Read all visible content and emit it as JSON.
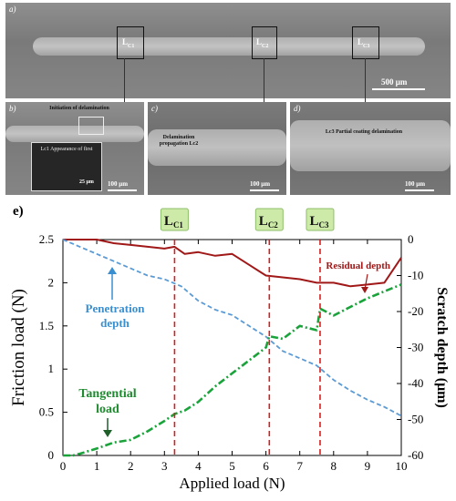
{
  "micrographs": {
    "a": {
      "label": "a)",
      "scale": "500 μm",
      "boxes": [
        "L",
        "L",
        "L"
      ],
      "box_subs": [
        "C1",
        "C2",
        "C3"
      ]
    },
    "b": {
      "label": "b)",
      "scale": "100 μm",
      "annotation": "Initiation of delamination",
      "inset_text": "Lc1 Appearance of first",
      "inset_scale": "25 μm"
    },
    "c": {
      "label": "c)",
      "scale": "100 μm",
      "annotation": "Delamination propagation Lc2"
    },
    "d": {
      "label": "d)",
      "scale": "100 μm",
      "annotation": "Lc3 Partial coating delamination"
    }
  },
  "chart_label": "e)",
  "chart_data": {
    "type": "line",
    "xlabel": "Applied load (N)",
    "ylabel": "Friction load (N)",
    "y2label": "Scratch depth (μm)",
    "xlim": [
      0,
      10
    ],
    "ylim": [
      0,
      2.5
    ],
    "y2lim": [
      -60,
      0
    ],
    "xticks": [
      0,
      1,
      2,
      3,
      4,
      5,
      6,
      7,
      8,
      9,
      10
    ],
    "yticks": [
      0,
      0.5,
      1,
      1.5,
      2,
      2.5
    ],
    "y2ticks": [
      0,
      -10,
      -20,
      -30,
      -40,
      -50,
      -60
    ],
    "critical_loads": [
      {
        "name": "L",
        "sub": "C1",
        "x": 3.3
      },
      {
        "name": "L",
        "sub": "C2",
        "x": 6.1
      },
      {
        "name": "L",
        "sub": "C3",
        "x": 7.6
      }
    ],
    "series": [
      {
        "name": "Residual depth",
        "axis": "right",
        "color": "#a01818",
        "x": [
          0.0,
          0.5,
          1.0,
          1.5,
          2.0,
          2.5,
          3.0,
          3.3,
          3.6,
          4.0,
          4.5,
          5.0,
          5.5,
          6.0,
          6.5,
          7.0,
          7.5,
          8.0,
          8.5,
          9.0,
          9.5,
          10.0
        ],
        "y": [
          0,
          0,
          0,
          -1,
          -1.5,
          -2,
          -2.5,
          -2,
          -4,
          -3.5,
          -4.5,
          -4,
          -7,
          -10,
          -10.5,
          -11,
          -12,
          -12,
          -13,
          -12.5,
          -12,
          -5
        ]
      },
      {
        "name": "Penetration depth",
        "axis": "right",
        "color": "#5b9bd5",
        "x": [
          0.0,
          0.5,
          1.0,
          1.5,
          2.0,
          2.5,
          3.0,
          3.5,
          4.0,
          4.5,
          5.0,
          5.5,
          6.0,
          6.5,
          7.0,
          7.5,
          8.0,
          8.5,
          9.0,
          9.5,
          10.0
        ],
        "y": [
          0,
          -2,
          -4,
          -6,
          -8,
          -10,
          -11,
          -13,
          -17,
          -19.5,
          -21,
          -24,
          -27,
          -31,
          -33,
          -35,
          -39,
          -42,
          -44.5,
          -46.5,
          -49
        ]
      },
      {
        "name": "Tangential load",
        "axis": "left",
        "color": "#1aa33a",
        "x": [
          0.0,
          0.3,
          0.5,
          1.0,
          1.5,
          2.0,
          2.5,
          3.0,
          3.3,
          3.6,
          4.0,
          4.5,
          5.0,
          5.5,
          6.0,
          6.1,
          6.5,
          7.0,
          7.5,
          7.6,
          8.0,
          8.5,
          9.0,
          9.5,
          10.0
        ],
        "y": [
          0.0,
          0.0,
          0.02,
          0.08,
          0.15,
          0.18,
          0.28,
          0.4,
          0.48,
          0.52,
          0.62,
          0.8,
          0.95,
          1.1,
          1.25,
          1.38,
          1.35,
          1.5,
          1.45,
          1.7,
          1.62,
          1.72,
          1.82,
          1.9,
          1.98
        ]
      }
    ],
    "annotations": [
      {
        "text": "Residual depth",
        "color": "#a01818"
      },
      {
        "text": "Penetration depth",
        "color": "#3a8fd0"
      },
      {
        "text": "Tangential load",
        "color": "#1f8a2f"
      }
    ]
  }
}
